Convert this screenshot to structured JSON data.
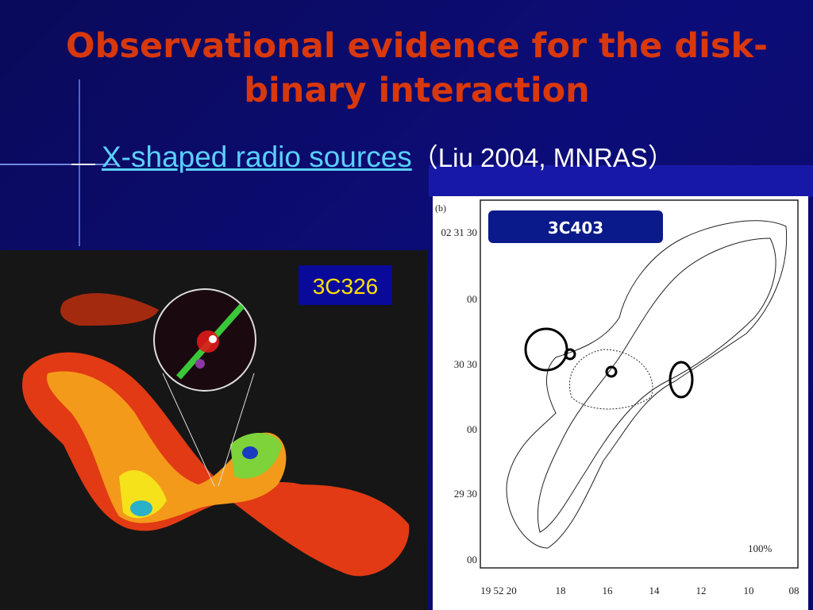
{
  "slide": {
    "title": "Observational evidence for the disk-binary interaction",
    "subtitle": {
      "link": "X-shaped radio sources",
      "citation": "（Liu 2004, MNRAS）"
    },
    "left_image": {
      "label": "3C326"
    },
    "right_image": {
      "panel": "(b)",
      "label": "3C403",
      "y_labels": [
        "02 31 30",
        "00",
        "30 30",
        "00",
        "29 30",
        "00"
      ],
      "x_labels": [
        "19 52 20",
        "18",
        "16",
        "14",
        "12",
        "10",
        "08"
      ],
      "scale_label": "100%"
    }
  }
}
